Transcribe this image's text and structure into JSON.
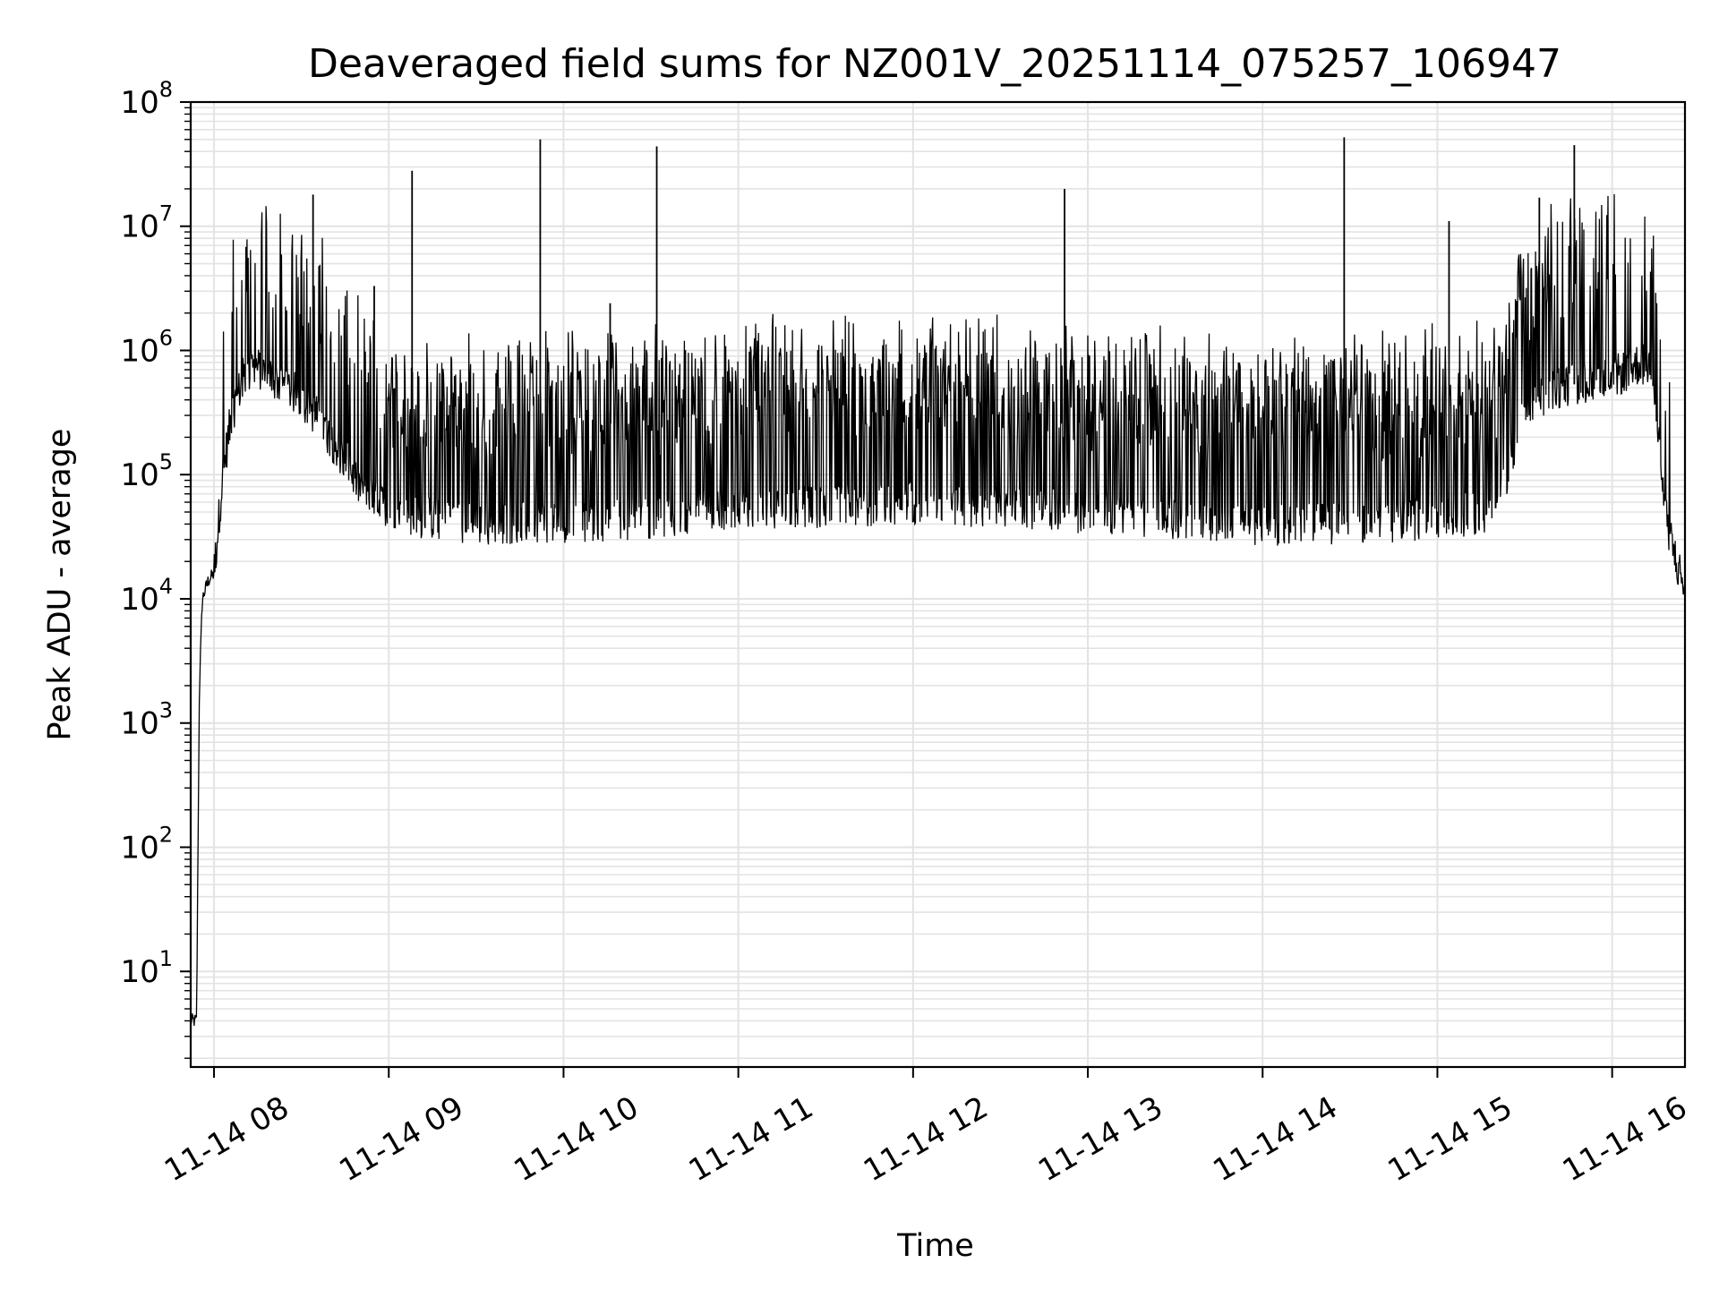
{
  "chart_data": {
    "type": "line",
    "title": "Deaveraged field sums for NZ001V_20251114_075257_106947",
    "xlabel": "Time",
    "ylabel": "Peak ADU - average",
    "yscale": "log",
    "ylim": [
      1.7,
      100000000
    ],
    "xlim": [
      "2025-11-14 07:52",
      "2025-11-14 16:25"
    ],
    "x_tick_labels": [
      "11-14 08",
      "11-14 09",
      "11-14 10",
      "11-14 11",
      "11-14 12",
      "11-14 13",
      "11-14 14",
      "11-14 15",
      "11-14 16"
    ],
    "y_tick_labels": [
      {
        "base": "10",
        "exp": "1"
      },
      {
        "base": "10",
        "exp": "2"
      },
      {
        "base": "10",
        "exp": "3"
      },
      {
        "base": "10",
        "exp": "4"
      },
      {
        "base": "10",
        "exp": "5"
      },
      {
        "base": "10",
        "exp": "6"
      },
      {
        "base": "10",
        "exp": "7"
      },
      {
        "base": "10",
        "exp": "8"
      }
    ],
    "grid": "major and minor, both axes",
    "line_color": "#000000",
    "grid_color": "#e3e3e3",
    "series": [
      {
        "x": [
          "2025-11-14 07:52",
          "2025-11-14 07:53",
          "2025-11-14 07:54",
          "2025-11-14 07:55",
          "2025-11-14 07:56",
          "2025-11-14 07:58",
          "2025-11-14 08:00",
          "2025-11-14 08:03",
          "2025-11-14 08:06",
          "2025-11-14 08:10",
          "2025-11-14 08:14",
          "2025-11-14 08:20",
          "2025-11-14 08:30",
          "2025-11-14 08:35",
          "2025-11-14 08:40",
          "2025-11-14 08:45",
          "2025-11-14 08:50",
          "2025-11-14 08:55",
          "2025-11-14 09:00",
          "2025-11-14 09:10",
          "2025-11-14 09:30",
          "2025-11-14 10:00",
          "2025-11-14 10:30",
          "2025-11-14 11:00",
          "2025-11-14 11:30",
          "2025-11-14 12:00",
          "2025-11-14 12:30",
          "2025-11-14 13:00",
          "2025-11-14 13:30",
          "2025-11-14 14:00",
          "2025-11-14 14:30",
          "2025-11-14 15:00",
          "2025-11-14 15:20",
          "2025-11-14 15:30",
          "2025-11-14 15:40",
          "2025-11-14 16:00",
          "2025-11-14 16:10",
          "2025-11-14 16:14",
          "2025-11-14 16:18",
          "2025-11-14 16:22",
          "2025-11-14 16:25"
        ],
        "y": [
          4,
          4,
          4,
          2000,
          10000,
          14000,
          16000,
          100000,
          300000,
          600000,
          750000,
          600000,
          420000,
          300000,
          200000,
          130000,
          80000,
          60000,
          55000,
          45000,
          40000,
          42000,
          45000,
          55000,
          55000,
          60000,
          55000,
          50000,
          45000,
          40000,
          40000,
          45000,
          50000,
          300000,
          500000,
          600000,
          800000,
          700000,
          50000,
          20000,
          12000
        ]
      },
      {
        "name": "",
        "type": "spikes",
        "x": [
          "2025-11-14 08:34",
          "2025-11-14 08:55",
          "2025-11-14 09:08",
          "2025-11-14 09:52",
          "2025-11-14 10:16",
          "2025-11-14 10:32",
          "2025-11-14 12:52",
          "2025-11-14 14:28",
          "2025-11-14 15:04",
          "2025-11-14 15:35",
          "2025-11-14 15:43",
          "2025-11-14 15:47"
        ],
        "y": [
          18000000,
          3300000,
          28000000,
          50000000,
          2400000,
          44000000,
          20000000,
          52000000,
          11000000,
          17000000,
          1000000,
          45000000
        ]
      }
    ]
  }
}
